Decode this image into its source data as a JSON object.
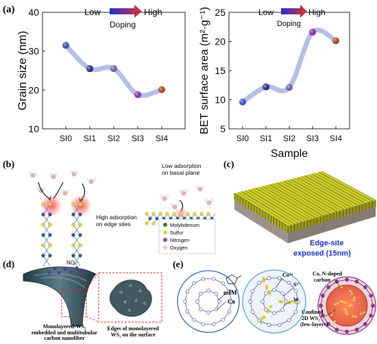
{
  "panels": {
    "a": {
      "label": "(a)",
      "doping_low": "Low",
      "doping_high": "High",
      "doping_word": "Doping",
      "xlabel": "Sample"
    },
    "b": {
      "label": "(b)",
      "low_adsorption": [
        "Low adsorption",
        "on basal plane"
      ],
      "high_adsorption": [
        "High adsorption",
        "on edge sites"
      ],
      "legend": [
        {
          "label": "Molybdenum",
          "color": "#2e7d32"
        },
        {
          "label": "Sulfur",
          "color": "#e6d82a"
        },
        {
          "label": "Nitrogen",
          "color": "#8e44ad"
        },
        {
          "label": "Oxygen",
          "color": "#e8c4c4"
        }
      ]
    },
    "c": {
      "label": "(c)",
      "caption": [
        "Edge-site",
        "exposed (15nm)"
      ]
    },
    "d": {
      "label": "(d)",
      "ion": "NO₃⁻",
      "caption_left": [
        "Monolayered-WS₂",
        "embedded and multitubular",
        "carbon nanofiber"
      ],
      "caption_right": [
        "Edges of monolayered",
        "WS₂ on the surface"
      ]
    },
    "e": {
      "label": "(e)",
      "mim": "mIM",
      "co": "Co",
      "co2": "Co²⁺",
      "s2": "S²⁻",
      "w": "W",
      "label_carbon": [
        "Co, N-doped",
        "carbon"
      ],
      "label_ws2": [
        "Confined",
        "2D WS₂",
        "(few-layers)"
      ]
    }
  },
  "chart_data": [
    {
      "type": "line",
      "title": "",
      "xlabel": "",
      "ylabel": "Grain size (nm)",
      "categories": [
        "SI0",
        "SI1",
        "SI2",
        "SI3",
        "SI4"
      ],
      "values": [
        31.5,
        25.5,
        25.5,
        18.8,
        20.1
      ],
      "ylim": [
        10,
        40
      ],
      "yticks": [
        10,
        20,
        30,
        40
      ],
      "point_colors": [
        "#3557c8",
        "#1f2d8c",
        "#7a63c4",
        "#8a2cc2",
        "#c8421b"
      ],
      "curve_color": "#a9b4e3",
      "grid": false
    },
    {
      "type": "line",
      "title": "",
      "xlabel": "Sample",
      "ylabel": "BET surface area (m²·g⁻¹)",
      "categories": [
        "SI0",
        "SI1",
        "SI2",
        "SI3",
        "SI4"
      ],
      "values": [
        9.6,
        12.2,
        12.1,
        21.6,
        20.1
      ],
      "ylim": [
        5,
        25
      ],
      "yticks": [
        5,
        10,
        15,
        20,
        25
      ],
      "point_colors": [
        "#3557c8",
        "#1f2d8c",
        "#7a63c4",
        "#8a2cc2",
        "#c8421b"
      ],
      "curve_color": "#a9b4e3",
      "grid": false
    }
  ]
}
